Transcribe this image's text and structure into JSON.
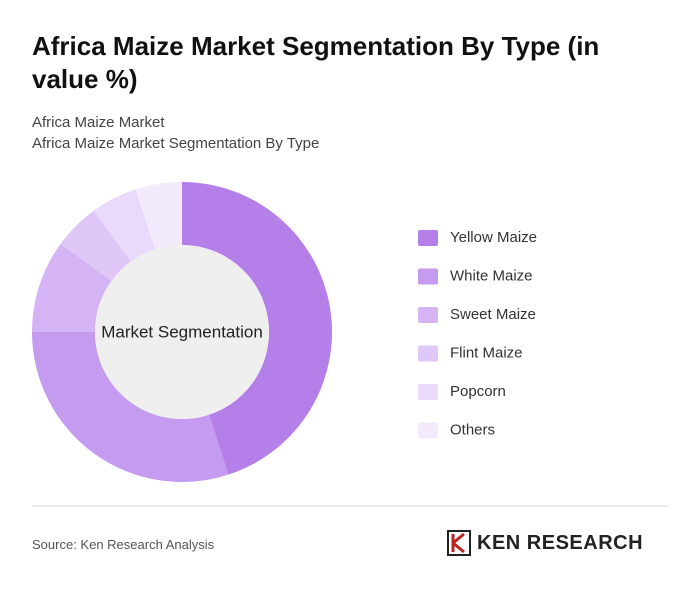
{
  "chart_data": {
    "type": "donut",
    "title": "Africa Maize Market Segmentation By Type (in value %)",
    "subtitle": "Africa Maize Market",
    "subtitle_2": "Africa Maize Market Segmentation By Type",
    "center_label": "Market Segmentation",
    "categories": [
      "Yellow Maize",
      "White Maize",
      "Sweet Maize",
      "Flint Maize",
      "Popcorn",
      "Others"
    ],
    "values": [
      45,
      30,
      10,
      5,
      5,
      5
    ],
    "colors": [
      "#b57fe9",
      "#c59bf0",
      "#d4b4f4",
      "#dfc7f7",
      "#e9d9fa",
      "#f3eafd"
    ],
    "source": "Source: Ken Research Analysis"
  },
  "brand": "KEN RESEARCH"
}
